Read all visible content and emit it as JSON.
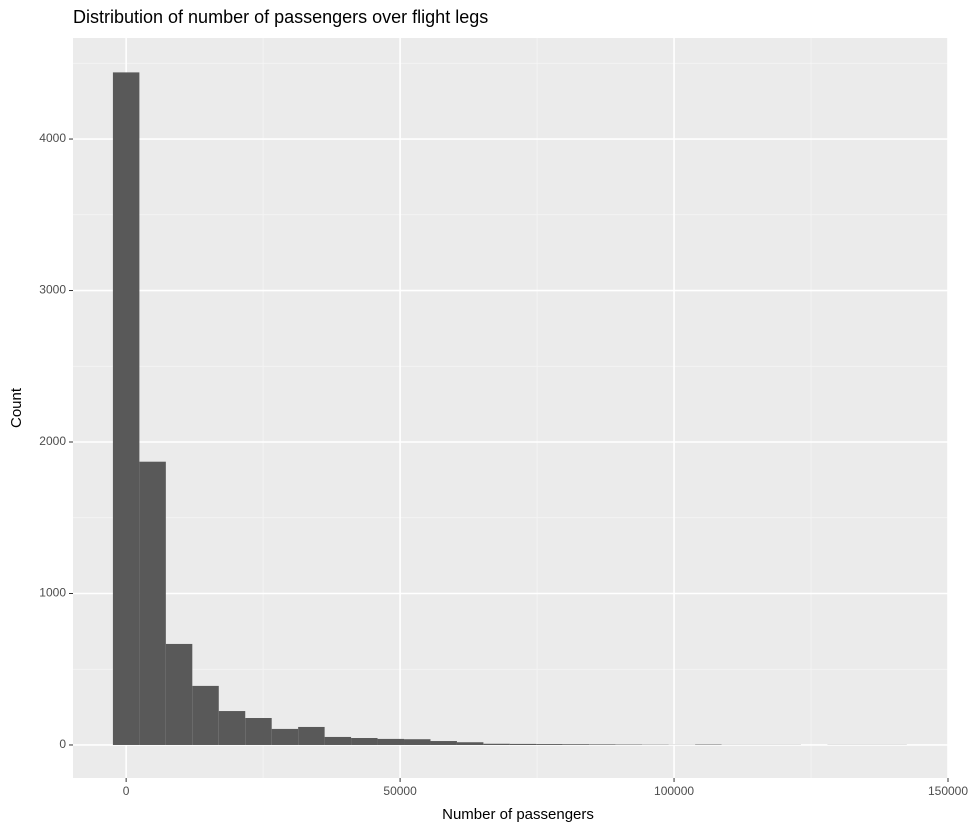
{
  "chart_data": {
    "type": "histogram",
    "title": "Distribution of number of passengers over flight legs",
    "x_label": "Number of passengers",
    "y_label": "Count",
    "bins": [
      -2415,
      2415,
      7245,
      12075,
      16905,
      21735,
      26565,
      31395,
      36225,
      41055,
      45885,
      50715,
      55545,
      60375,
      65205,
      70035,
      74865,
      79695,
      84525,
      89355,
      94185,
      99015,
      103845,
      108675,
      113505,
      118335,
      123165,
      127995,
      132825,
      137655,
      142485
    ],
    "values": [
      4440,
      1870,
      667,
      390,
      224,
      178,
      106,
      119,
      53,
      46,
      40,
      38,
      26,
      18,
      8,
      7,
      6,
      5,
      4,
      3,
      2,
      1,
      3,
      1,
      1,
      1,
      0,
      1,
      1,
      1
    ],
    "color": "#595959",
    "xlim": [
      -9700,
      150000
    ],
    "ylim": [
      -218,
      4667
    ],
    "xticks": [
      0,
      50000,
      100000,
      150000
    ],
    "yticks": [
      0,
      1000,
      2000,
      3000,
      4000
    ],
    "x_minor_grid": [
      25000,
      75000,
      125000
    ],
    "y_minor_grid": [
      500,
      1500,
      2500,
      3500,
      4500
    ],
    "grid": true
  }
}
